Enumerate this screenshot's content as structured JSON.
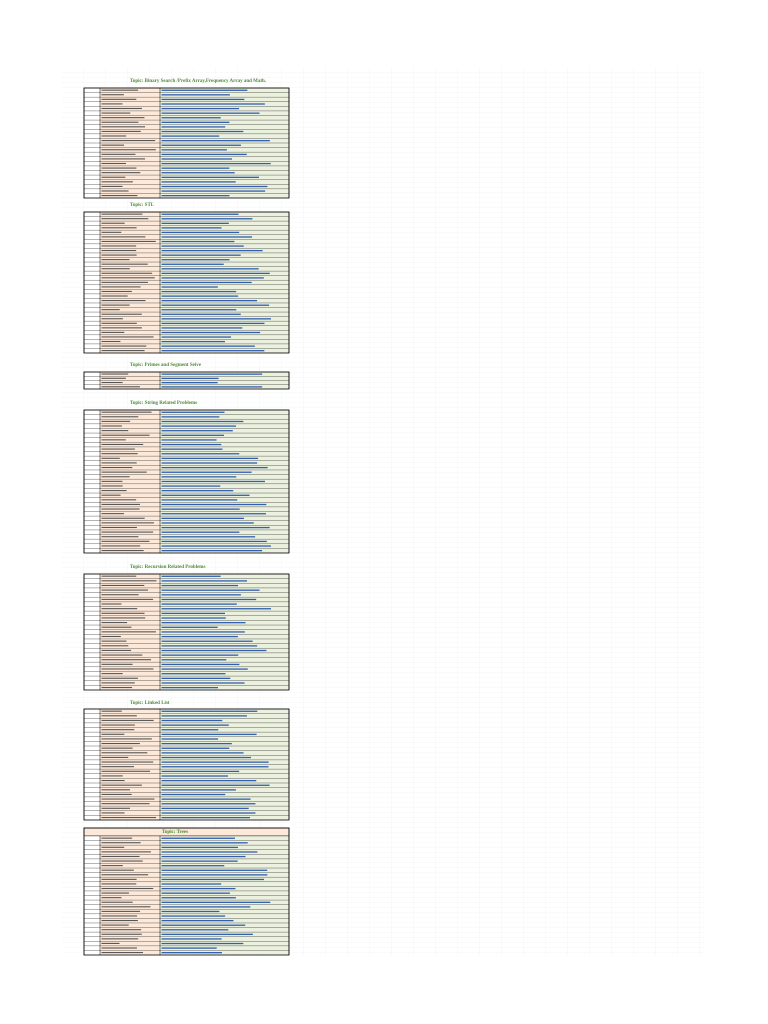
{
  "sections": [
    {
      "title": "Topic: Binary Search /Prefix Array,Frequency Array and Math."
    },
    {
      "title": "Topic: STL"
    },
    {
      "title": "Topic: Primes and Segment Seive"
    },
    {
      "title": "Topic: String Related Problems"
    },
    {
      "title": "Topic: Recursion Related Problems"
    },
    {
      "title": "Topic: Linked List"
    },
    {
      "title": "Topic: Trees"
    }
  ]
}
